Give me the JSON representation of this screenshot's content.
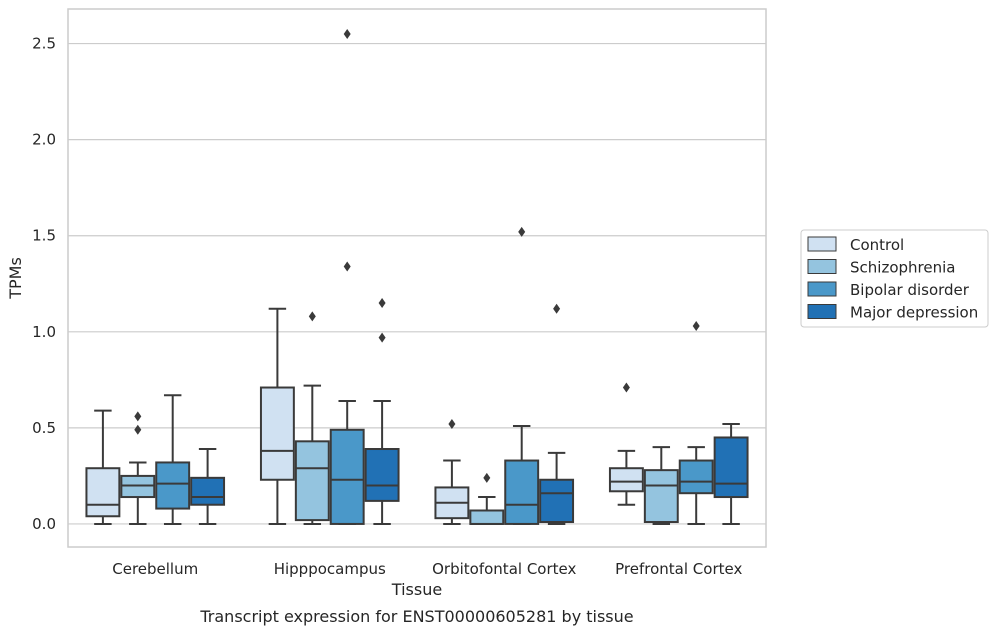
{
  "chart_data": {
    "type": "boxplot",
    "caption": "Transcript expression for ENST00000605281 by tissue",
    "xlabel": "Tissue",
    "ylabel": "TPMs",
    "ylim": [
      -0.12,
      2.68
    ],
    "yticks": [
      "0.0",
      "0.5",
      "1.0",
      "1.5",
      "2.0",
      "2.5"
    ],
    "grid": true,
    "legend_position": "right",
    "categories": [
      "Cerebellum",
      "Hipppocampus",
      "Orbitofontal Cortex",
      "Prefrontal Cortex"
    ],
    "series": [
      {
        "name": "Control",
        "color": "#d0e1f2",
        "boxes": [
          {
            "whislo": 0.0,
            "q1": 0.04,
            "med": 0.1,
            "q3": 0.29,
            "whishi": 0.59,
            "fliers": []
          },
          {
            "whislo": 0.0,
            "q1": 0.23,
            "med": 0.38,
            "q3": 0.71,
            "whishi": 1.12,
            "fliers": []
          },
          {
            "whislo": 0.0,
            "q1": 0.03,
            "med": 0.11,
            "q3": 0.19,
            "whishi": 0.33,
            "fliers": [
              0.52
            ]
          },
          {
            "whislo": 0.1,
            "q1": 0.17,
            "med": 0.22,
            "q3": 0.29,
            "whishi": 0.38,
            "fliers": [
              0.71
            ]
          }
        ]
      },
      {
        "name": "Schizophrenia",
        "color": "#94c4df",
        "boxes": [
          {
            "whislo": 0.0,
            "q1": 0.14,
            "med": 0.2,
            "q3": 0.25,
            "whishi": 0.32,
            "fliers": [
              0.49,
              0.56
            ]
          },
          {
            "whislo": 0.0,
            "q1": 0.02,
            "med": 0.29,
            "q3": 0.43,
            "whishi": 0.72,
            "fliers": [
              1.08
            ]
          },
          {
            "whislo": 0.0,
            "q1": 0.0,
            "med": 0.0,
            "q3": 0.07,
            "whishi": 0.14,
            "fliers": [
              0.24
            ]
          },
          {
            "whislo": 0.0,
            "q1": 0.01,
            "med": 0.2,
            "q3": 0.28,
            "whishi": 0.4,
            "fliers": []
          }
        ]
      },
      {
        "name": "Bipolar disorder",
        "color": "#4a98c9",
        "boxes": [
          {
            "whislo": 0.0,
            "q1": 0.08,
            "med": 0.21,
            "q3": 0.32,
            "whishi": 0.67,
            "fliers": []
          },
          {
            "whislo": 0.0,
            "q1": 0.0,
            "med": 0.23,
            "q3": 0.49,
            "whishi": 0.64,
            "fliers": [
              1.34,
              2.55
            ]
          },
          {
            "whislo": 0.0,
            "q1": 0.0,
            "med": 0.1,
            "q3": 0.33,
            "whishi": 0.51,
            "fliers": [
              1.52
            ]
          },
          {
            "whislo": 0.0,
            "q1": 0.16,
            "med": 0.22,
            "q3": 0.33,
            "whishi": 0.4,
            "fliers": [
              1.03
            ]
          }
        ]
      },
      {
        "name": "Major depression",
        "color": "#2171b5",
        "boxes": [
          {
            "whislo": 0.0,
            "q1": 0.1,
            "med": 0.14,
            "q3": 0.24,
            "whishi": 0.39,
            "fliers": []
          },
          {
            "whislo": 0.0,
            "q1": 0.12,
            "med": 0.2,
            "q3": 0.39,
            "whishi": 0.64,
            "fliers": [
              0.97,
              1.15
            ]
          },
          {
            "whislo": 0.0,
            "q1": 0.01,
            "med": 0.16,
            "q3": 0.23,
            "whishi": 0.37,
            "fliers": [
              1.12
            ]
          },
          {
            "whislo": 0.0,
            "q1": 0.14,
            "med": 0.21,
            "q3": 0.45,
            "whishi": 0.52,
            "fliers": []
          }
        ]
      }
    ]
  }
}
